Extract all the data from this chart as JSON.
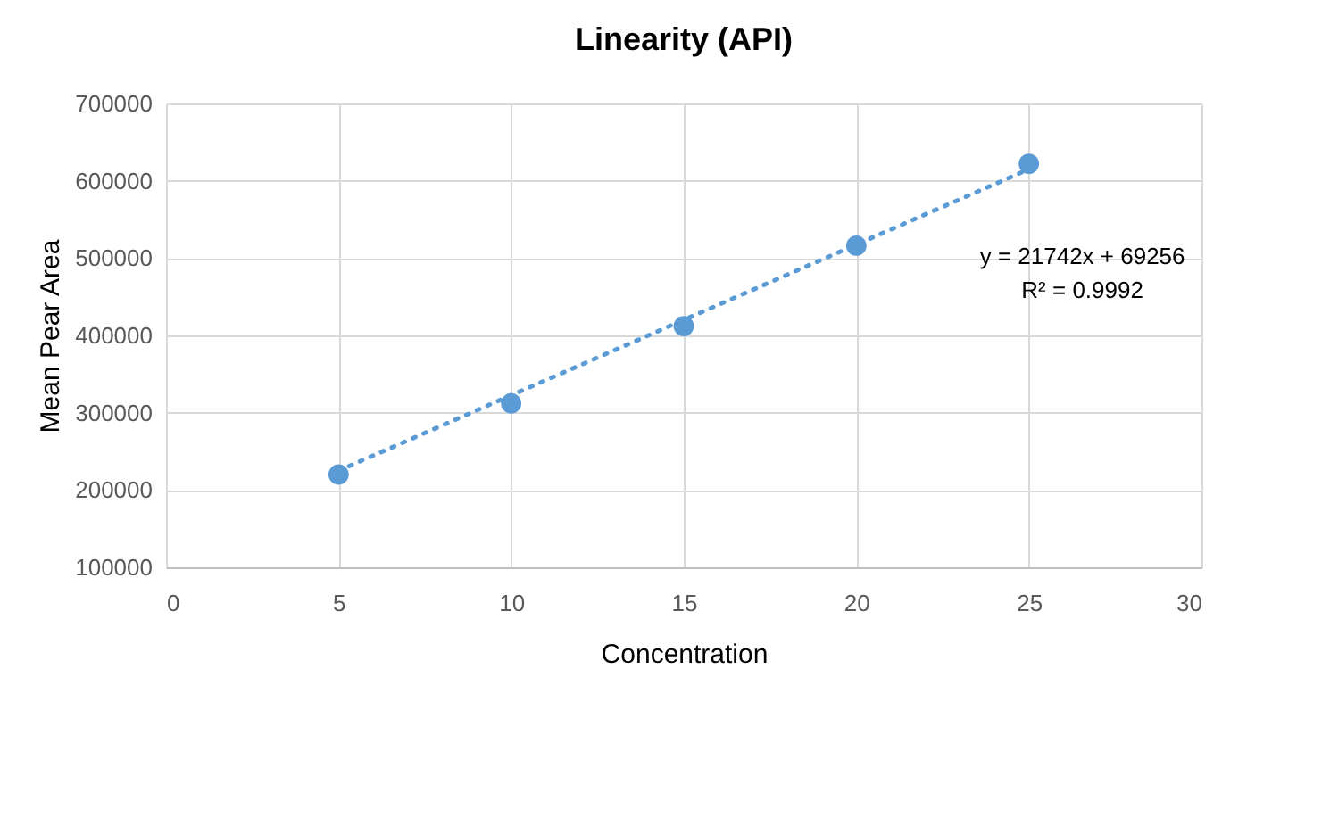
{
  "chart_data": {
    "type": "scatter",
    "title": "Linearity (API)",
    "xlabel": "Concentration",
    "ylabel": "Mean Pear Area",
    "x": [
      5,
      10,
      15,
      20,
      25
    ],
    "series": [
      {
        "color": "#5b9bd5",
        "values": [
          220000,
          312000,
          412000,
          516000,
          622000
        ],
        "marker": "circle"
      },
      {
        "type": "line",
        "color": "#5b9bd5",
        "x": [
          5,
          25
        ],
        "values": [
          225000,
          615000
        ],
        "line_style": "dotted",
        "marker": "none"
      }
    ],
    "annotations": [
      "y = 21742x + 69256",
      "R² = 0.9992"
    ],
    "xlim": [
      0,
      30
    ],
    "xticks": [
      0,
      5,
      10,
      15,
      20,
      25,
      30
    ],
    "ylim": [
      100000,
      700000
    ],
    "yticks": [
      100000,
      200000,
      300000,
      400000,
      500000,
      600000,
      700000
    ],
    "grid": true
  }
}
